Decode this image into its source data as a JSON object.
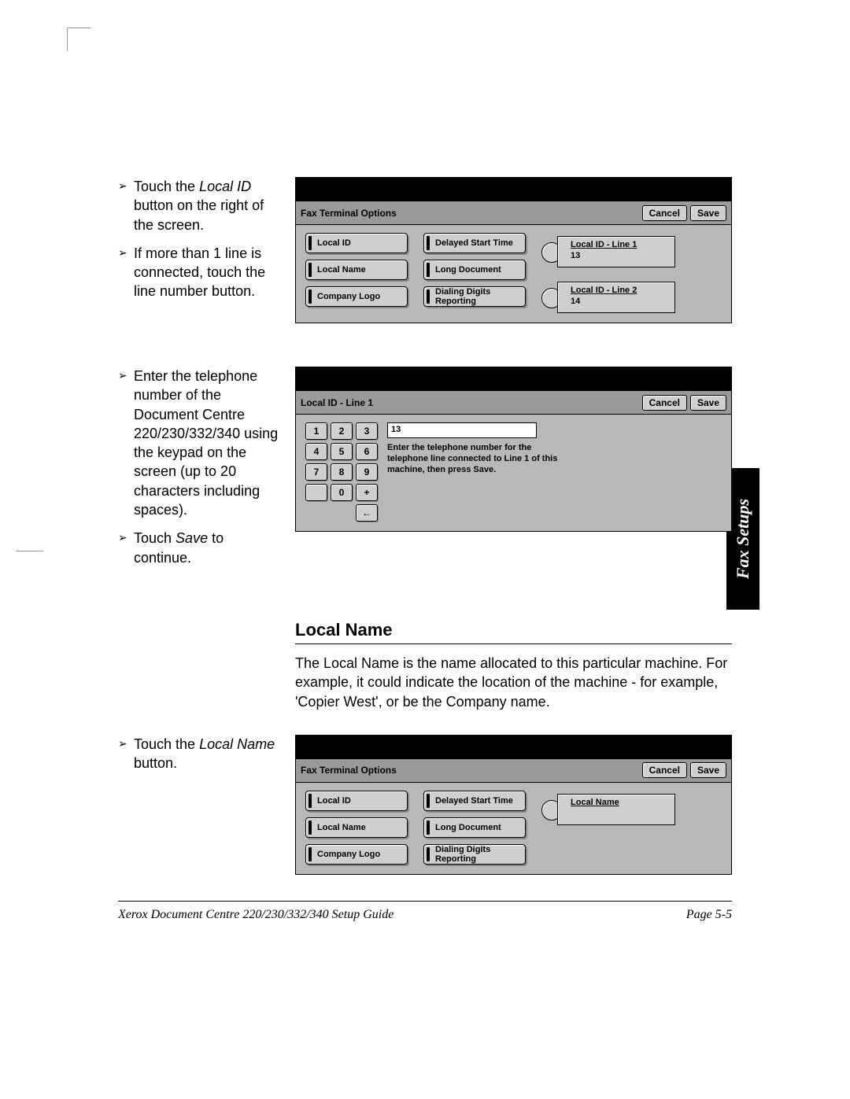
{
  "instructions": {
    "block1": [
      "Touch the <em>Local ID</em> button on the right of the screen.",
      "If more than 1 line is connected, touch the line number button."
    ],
    "block2": [
      "Enter the telephone number of the Document Centre 220/230/332/340 using the keypad on the screen (up to 20 characters including spaces).",
      "Touch <em>Save</em> to continue."
    ],
    "block3": [
      "Touch the <em>Local Name</em> button."
    ]
  },
  "screens": {
    "faxOptions1": {
      "title": "Fax Terminal Options",
      "cancel": "Cancel",
      "save": "Save",
      "col1": [
        "Local ID",
        "Local Name",
        "Company Logo"
      ],
      "col2": [
        "Delayed Start Time",
        "Long Document",
        "Dialing Digits Reporting"
      ],
      "lines": [
        {
          "label": "Local ID - Line 1",
          "value": "13"
        },
        {
          "label": "Local ID - Line 2",
          "value": "14"
        }
      ]
    },
    "localIdEntry": {
      "title": "Local ID - Line 1",
      "cancel": "Cancel",
      "save": "Save",
      "value": "13",
      "help": "Enter the telephone number for the telephone line connected to Line 1 of this machine, then press Save.",
      "keys": [
        "1",
        "2",
        "3",
        "4",
        "5",
        "6",
        "7",
        "8",
        "9",
        "",
        "0",
        "+",
        "",
        "",
        "←"
      ]
    },
    "faxOptions2": {
      "title": "Fax Terminal Options",
      "cancel": "Cancel",
      "save": "Save",
      "col1": [
        "Local ID",
        "Local Name",
        "Company Logo"
      ],
      "col2": [
        "Delayed Start Time",
        "Long Document",
        "Dialing Digits Reporting"
      ],
      "localNameTab": {
        "label": "Local Name",
        "value": ""
      }
    }
  },
  "section": {
    "heading": "Local Name",
    "para": "The Local Name is the name allocated to this particular machine. For example, it could indicate the location of the machine - for example, 'Copier West', or be the Company name."
  },
  "sideTab": "Fax Setups",
  "footer": {
    "left": "Xerox Document Centre 220/230/332/340 Setup Guide",
    "right": "Page 5-5"
  },
  "colors": {
    "panel_bg": "#b8b8b8",
    "button_bg": "#cfcfcf",
    "black": "#000000"
  }
}
